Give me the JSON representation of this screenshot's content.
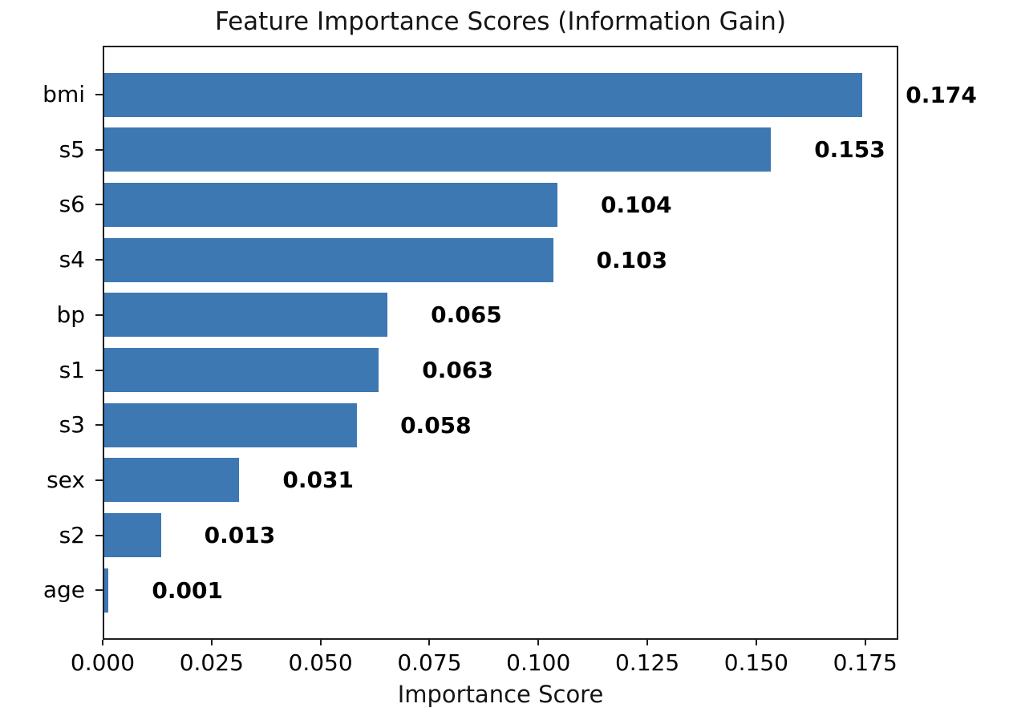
{
  "chart_data": {
    "type": "bar",
    "orientation": "horizontal",
    "title": "Feature Importance Scores (Information Gain)",
    "xlabel": "Importance Score",
    "ylabel": "",
    "categories": [
      "bmi",
      "s5",
      "s6",
      "s4",
      "bp",
      "s1",
      "s3",
      "sex",
      "s2",
      "age"
    ],
    "values": [
      0.174,
      0.153,
      0.104,
      0.103,
      0.065,
      0.063,
      0.058,
      0.031,
      0.013,
      0.001
    ],
    "value_labels": [
      "0.174",
      "0.153",
      "0.104",
      "0.103",
      "0.065",
      "0.063",
      "0.058",
      "0.031",
      "0.013",
      "0.001"
    ],
    "x_ticks": [
      {
        "value": 0.0,
        "label": "0.000"
      },
      {
        "value": 0.025,
        "label": "0.025"
      },
      {
        "value": 0.05,
        "label": "0.050"
      },
      {
        "value": 0.075,
        "label": "0.075"
      },
      {
        "value": 0.1,
        "label": "0.100"
      },
      {
        "value": 0.125,
        "label": "0.125"
      },
      {
        "value": 0.15,
        "label": "0.150"
      },
      {
        "value": 0.175,
        "label": "0.175"
      }
    ],
    "xlim": [
      0,
      0.1826
    ],
    "grid": false,
    "legend": null,
    "bar_color": "#3d78b2",
    "spine_color": "#1f1f1f",
    "text_color": "#000000",
    "background_color": "#ffffff"
  }
}
